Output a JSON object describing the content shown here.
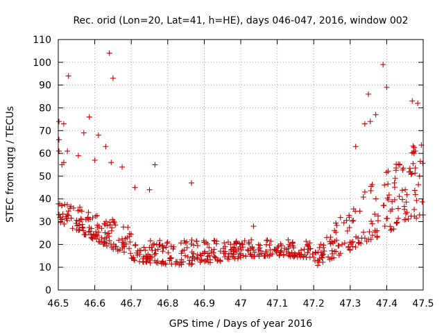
{
  "chart_data": {
    "type": "scatter",
    "title": "Rec. orid (Lon=20, Lat=41, h=HE), days 046-047, 2016, window 002",
    "xlabel": "GPS time / Days of year 2016",
    "ylabel": "STEC from uqrg / TECUs",
    "xlim": [
      46.5,
      47.5
    ],
    "ylim": [
      0,
      110
    ],
    "xticks": [
      "46.5",
      "46.6",
      "46.7",
      "46.8",
      "46.9",
      "47",
      "47.1",
      "47.2",
      "47.3",
      "47.4",
      "47.5"
    ],
    "yticks": [
      "0",
      "10",
      "20",
      "30",
      "40",
      "50",
      "60",
      "70",
      "80",
      "90",
      "100",
      "110"
    ],
    "grid": true,
    "marker": "plus",
    "color": "#c80000",
    "outliers": [
      [
        46.502,
        74
      ],
      [
        46.515,
        73
      ],
      [
        46.502,
        66
      ],
      [
        46.515,
        56
      ],
      [
        46.51,
        55
      ],
      [
        46.502,
        61
      ],
      [
        46.525,
        61
      ],
      [
        46.528,
        94
      ],
      [
        46.555,
        59
      ],
      [
        46.57,
        69
      ],
      [
        46.585,
        76
      ],
      [
        46.61,
        68
      ],
      [
        46.6,
        57
      ],
      [
        46.63,
        63
      ],
      [
        46.64,
        104
      ],
      [
        46.65,
        93
      ],
      [
        46.645,
        56
      ],
      [
        46.675,
        54
      ],
      [
        46.71,
        45
      ],
      [
        46.75,
        44
      ],
      [
        46.765,
        55
      ],
      [
        46.865,
        47
      ],
      [
        47.035,
        28
      ],
      [
        47.35,
        86
      ],
      [
        47.39,
        99
      ],
      [
        47.4,
        89
      ],
      [
        47.47,
        83
      ],
      [
        47.485,
        82
      ],
      [
        47.475,
        60
      ],
      [
        47.49,
        50
      ],
      [
        47.315,
        63
      ],
      [
        47.355,
        74
      ],
      [
        47.34,
        73
      ],
      [
        47.37,
        77
      ]
    ]
  }
}
